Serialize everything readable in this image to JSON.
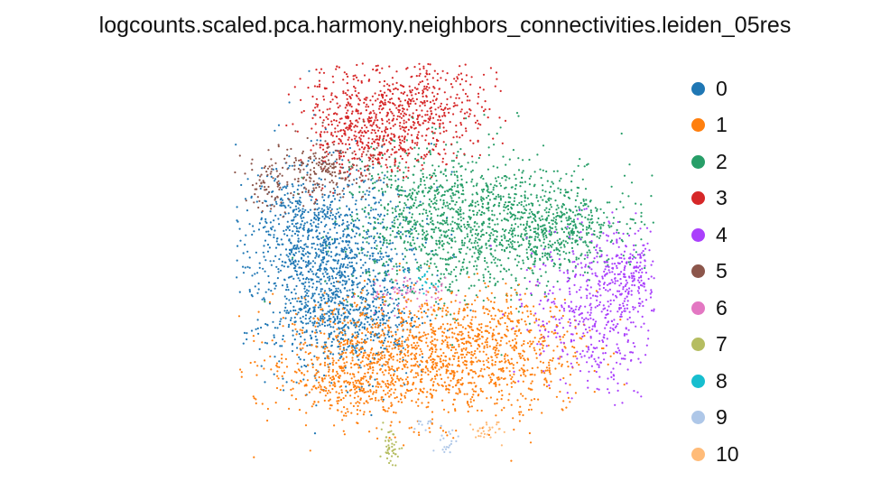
{
  "chart_data": {
    "type": "scatter",
    "title": "logcounts.scaled.pca.harmony.neighbors_connectivities.leiden_05res",
    "xlabel": "",
    "ylabel": "",
    "grid": false,
    "axes_visible": false,
    "legend_position": "right",
    "series": [
      {
        "name": "0",
        "color": "#1f77b4"
      },
      {
        "name": "1",
        "color": "#ff7f0e"
      },
      {
        "name": "2",
        "color": "#279e68"
      },
      {
        "name": "3",
        "color": "#d62728"
      },
      {
        "name": "4",
        "color": "#aa40fc"
      },
      {
        "name": "5",
        "color": "#8c564b"
      },
      {
        "name": "6",
        "color": "#e377c2"
      },
      {
        "name": "7",
        "color": "#b5bd61"
      },
      {
        "name": "8",
        "color": "#17becf"
      },
      {
        "name": "9",
        "color": "#aec7e8"
      },
      {
        "name": "10",
        "color": "#ffbb78"
      }
    ]
  }
}
